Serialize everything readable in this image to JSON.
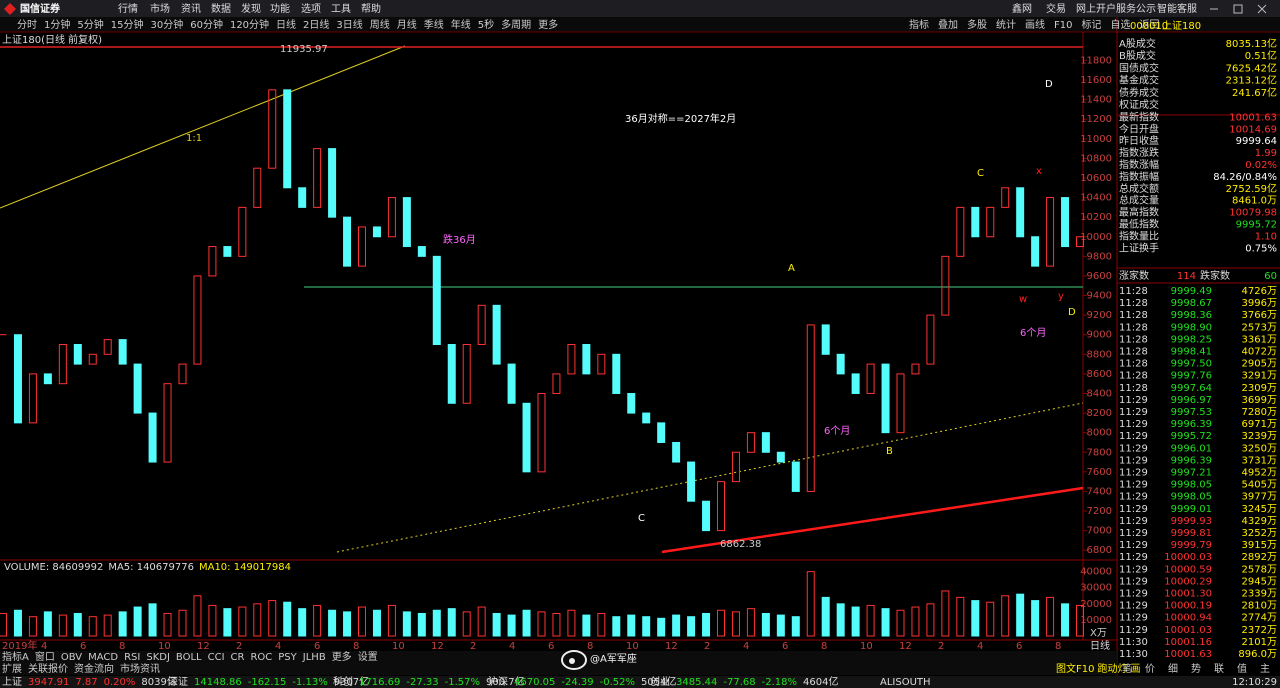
{
  "menu": {
    "logo": "国信证券",
    "items": [
      "行情",
      "市场",
      "资讯",
      "数据",
      "发现",
      "功能",
      "选项",
      "工具",
      "帮助"
    ],
    "right": [
      "鑫网",
      "交易",
      "网上开户",
      "服务公示",
      "智能客服"
    ]
  },
  "toolbar": {
    "periods": [
      "分时",
      "1分钟",
      "5分钟",
      "15分钟",
      "30分钟",
      "60分钟",
      "120分钟",
      "日线",
      "2日线",
      "3日线",
      "周线",
      "月线",
      "季线",
      "年线",
      "5秒",
      "多周期",
      "更多"
    ],
    "tools": [
      "指标",
      "叠加",
      "多股",
      "统计",
      "画线",
      "F10",
      "标记",
      "自选",
      "返回"
    ]
  },
  "chart": {
    "type": "candlestick",
    "title": "上证180(日线 前复权)",
    "closes": [
      9000,
      8100,
      8600,
      8500,
      8900,
      8700,
      8800,
      8950,
      8700,
      8200,
      7700,
      8500,
      8700,
      9600,
      9900,
      9800,
      10300,
      10700,
      11500,
      10500,
      10300,
      10900,
      10200,
      9700,
      10100,
      10000,
      10400,
      9900,
      9800,
      8900,
      8300,
      8900,
      9300,
      8700,
      8300,
      7600,
      8400,
      8600,
      8900,
      8600,
      8800,
      8400,
      8200,
      8100,
      7900,
      7700,
      7300,
      7000,
      7500,
      7800,
      8000,
      7800,
      7700,
      7400,
      9100,
      8800,
      8600,
      8400,
      8700,
      8000,
      8600,
      8700,
      9200,
      9800,
      10300,
      10000,
      10300,
      10500,
      10000,
      9700,
      10400,
      9900,
      10000
    ],
    "ylim": [
      6700,
      12070
    ],
    "yticks": [
      11800,
      11600,
      11400,
      11200,
      11000,
      10800,
      10600,
      10400,
      10200,
      10000,
      9800,
      9600,
      9400,
      9200,
      9000,
      8800,
      8600,
      8400,
      8200,
      8000,
      7800,
      7600,
      7400,
      7200,
      7000,
      6800
    ],
    "up_color": "#ff3232",
    "down_color": "#54fcfc",
    "high_label": "11935.97",
    "low_label": "6862.38",
    "ratio_label": "1:1",
    "annotations": [
      "36月对称==2027年2月",
      "跌36月",
      "6个月",
      "6个月",
      "A",
      "B",
      "C",
      "C",
      "D",
      "D",
      "w",
      "x",
      "y"
    ],
    "x_labels": [
      "2019年",
      "4",
      "6",
      "8",
      "10",
      "12",
      "2",
      "4",
      "6",
      "8",
      "10",
      "12",
      "2",
      "4",
      "6",
      "8",
      "10",
      "12",
      "2",
      "4",
      "6",
      "8",
      "10",
      "12",
      "2",
      "4",
      "6",
      "8"
    ],
    "period_label": "日线"
  },
  "volume": {
    "legend": [
      "VOLUME: 84609992",
      "MA5: 140679776",
      "MA10: 149017984"
    ],
    "values": [
      14000,
      16000,
      12000,
      15000,
      13000,
      14000,
      12000,
      13000,
      15000,
      18000,
      20000,
      14000,
      16000,
      25000,
      19000,
      17000,
      18000,
      20000,
      22000,
      21000,
      17000,
      19000,
      16000,
      15000,
      18000,
      16000,
      19000,
      15000,
      14000,
      16000,
      17000,
      15000,
      18000,
      14000,
      13000,
      16000,
      15000,
      14000,
      16000,
      13000,
      14000,
      12000,
      13000,
      12000,
      11000,
      13000,
      12000,
      14000,
      16000,
      15000,
      17000,
      14000,
      13000,
      12000,
      40000,
      24000,
      20000,
      18000,
      19000,
      17000,
      16000,
      18000,
      20000,
      28000,
      24000,
      22000,
      21000,
      25000,
      26000,
      22000,
      24000,
      20000,
      19000
    ],
    "ylim": [
      0,
      46000
    ],
    "yticks": [
      10000,
      20000,
      30000,
      40000
    ],
    "unit": "X万"
  },
  "side": {
    "code": "000010",
    "name": "上证180",
    "stats": [
      [
        "A股成交",
        "8035.13亿"
      ],
      [
        "B股成交",
        "0.51亿"
      ],
      [
        "国债成交",
        "7625.42亿"
      ],
      [
        "基金成交",
        "2313.12亿"
      ],
      [
        "债券成交",
        "241.67亿"
      ],
      [
        "权证成交",
        ""
      ],
      [
        "最新指数",
        "10001.63"
      ],
      [
        "今日开盘",
        "10014.69"
      ],
      [
        "昨日收盘",
        "9999.64"
      ],
      [
        "指数涨跌",
        "1.99"
      ],
      [
        "指数涨幅",
        "0.02%"
      ],
      [
        "指数振幅",
        "84.26/0.84%"
      ],
      [
        "总成交额",
        "2752.59亿"
      ],
      [
        "总成交量",
        "8461.0万"
      ],
      [
        "最高指数",
        "10079.98"
      ],
      [
        "最低指数",
        "9995.72"
      ],
      [
        "指数量比",
        "1.10"
      ],
      [
        "上证换手",
        "0.75%"
      ]
    ],
    "up_label": "涨家数",
    "up": "114",
    "down_label": "跌家数",
    "down": "60",
    "trades": [
      [
        "11:28",
        "9999.49",
        "4726万"
      ],
      [
        "11:28",
        "9998.67",
        "3996万"
      ],
      [
        "11:28",
        "9998.36",
        "3766万"
      ],
      [
        "11:28",
        "9998.90",
        "2573万"
      ],
      [
        "11:28",
        "9998.25",
        "3361万"
      ],
      [
        "11:28",
        "9998.41",
        "4072万"
      ],
      [
        "11:28",
        "9997.50",
        "2905万"
      ],
      [
        "11:28",
        "9997.76",
        "3291万"
      ],
      [
        "11:28",
        "9997.64",
        "2309万"
      ],
      [
        "11:29",
        "9996.97",
        "3699万"
      ],
      [
        "11:29",
        "9997.53",
        "7280万"
      ],
      [
        "11:29",
        "9996.39",
        "6971万"
      ],
      [
        "11:29",
        "9995.72",
        "3239万"
      ],
      [
        "11:29",
        "9996.01",
        "3250万"
      ],
      [
        "11:29",
        "9996.39",
        "3731万"
      ],
      [
        "11:29",
        "9997.21",
        "4952万"
      ],
      [
        "11:29",
        "9998.05",
        "5405万"
      ],
      [
        "11:29",
        "9998.05",
        "3977万"
      ],
      [
        "11:29",
        "9999.01",
        "3245万"
      ],
      [
        "11:29",
        "9999.93",
        "4329万"
      ],
      [
        "11:29",
        "9999.81",
        "3252万"
      ],
      [
        "11:29",
        "9999.79",
        "3915万"
      ],
      [
        "11:29",
        "10000.03",
        "2892万"
      ],
      [
        "11:29",
        "10000.59",
        "2578万"
      ],
      [
        "11:29",
        "10000.29",
        "2945万"
      ],
      [
        "11:29",
        "10001.30",
        "2339万"
      ],
      [
        "11:29",
        "10000.19",
        "2810万"
      ],
      [
        "11:29",
        "10000.94",
        "2774万"
      ],
      [
        "11:29",
        "10001.03",
        "2372万"
      ],
      [
        "11:30",
        "10001.16",
        "2101万"
      ],
      [
        "11:30",
        "10001.63",
        "896.0万"
      ]
    ]
  },
  "tabs": {
    "indicators": [
      "指标A",
      "窗口",
      "OBV",
      "MACD",
      "RSI",
      "SKDJ",
      "BOLL",
      "CCI",
      "CR",
      "ROC",
      "PSY",
      "JLHB",
      "更多",
      "设置"
    ],
    "extra": [
      "扩展",
      "关联报价",
      "资金流向",
      "市场资讯"
    ],
    "right": [
      "图文F10",
      "跑动灯",
      "画"
    ],
    "mini": [
      "笔",
      "价",
      "细",
      "势",
      "联",
      "值",
      "主"
    ]
  },
  "status": {
    "indices": [
      [
        "上证",
        "3947.91",
        "7.87",
        "0.20%",
        "8039亿"
      ],
      [
        "深证",
        "14148.86",
        "-162.15",
        "-1.13%",
        "9307亿"
      ],
      [
        "科创",
        "1716.69",
        "-27.33",
        "-1.57%",
        "900.7亿"
      ],
      [
        "沪深",
        "4670.05",
        "-24.39",
        "-0.52%",
        "5054亿"
      ],
      [
        "创业",
        "3485.44",
        "-77.68",
        "-2.18%",
        "4604亿"
      ]
    ],
    "server": "ALISOUTH",
    "time": "12:10:29"
  },
  "watermark": "@A军军座"
}
